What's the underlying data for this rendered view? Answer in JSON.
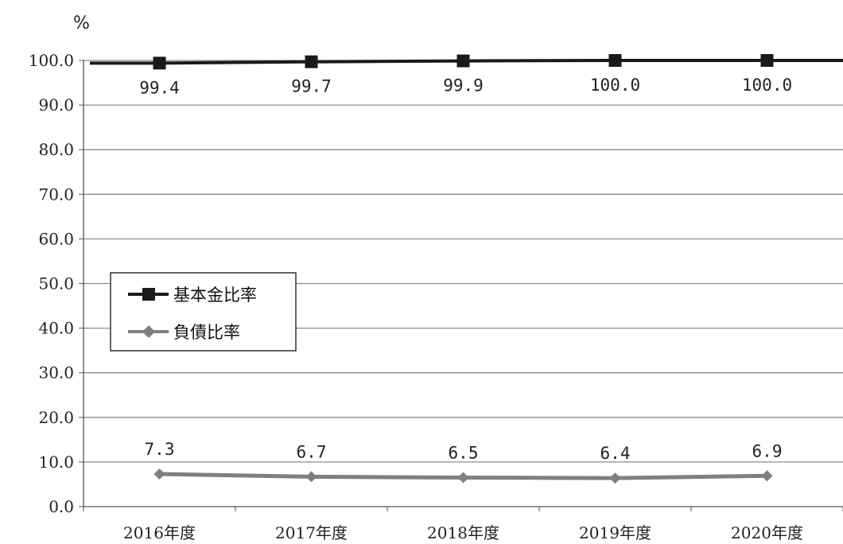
{
  "chart_data": {
    "type": "line",
    "y_unit": "%",
    "categories": [
      "2016年度",
      "2017年度",
      "2018年度",
      "2019年度",
      "2020年度"
    ],
    "series": [
      {
        "name": "基本金比率",
        "values": [
          99.4,
          99.7,
          99.9,
          100.0,
          100.0
        ],
        "labels": [
          "99.4",
          "99.7",
          "99.9",
          "100.0",
          "100.0"
        ],
        "color": "#1a1a1a",
        "marker": "square"
      },
      {
        "name": "負債比率",
        "values": [
          7.3,
          6.7,
          6.5,
          6.4,
          6.9
        ],
        "labels": [
          "7.3",
          "6.7",
          "6.5",
          "6.4",
          "6.9"
        ],
        "color": "#808080",
        "marker": "diamond"
      }
    ],
    "ylim": [
      0,
      100
    ],
    "yticks": [
      "0.0",
      "10.0",
      "20.0",
      "30.0",
      "40.0",
      "50.0",
      "60.0",
      "70.0",
      "80.0",
      "90.0",
      "100.0"
    ],
    "grid": true,
    "legend_position": "middle-left"
  }
}
